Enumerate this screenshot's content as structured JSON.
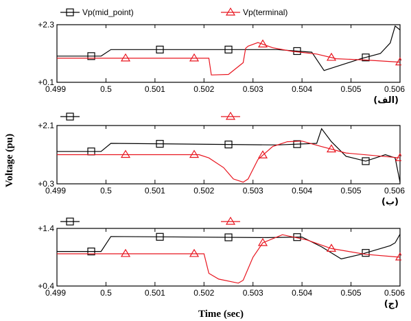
{
  "figure": {
    "ylabel": "Voltage (pu)",
    "xlabel": "Time (sec)",
    "legend": [
      {
        "name": "Vp(mid_point)",
        "color": "#000000",
        "marker": "square"
      },
      {
        "name": "Vp(terminal)",
        "color": "#e8141e",
        "marker": "triangle"
      }
    ]
  },
  "chart_data": [
    {
      "type": "line",
      "panel_label": "(الف)",
      "xlim": [
        0.499,
        0.506
      ],
      "ylim": [
        0.1,
        2.3
      ],
      "y_tick_labels": [
        "+2.3",
        "+0.1"
      ],
      "x_ticks": [
        0.499,
        0.5,
        0.501,
        0.502,
        0.503,
        0.504,
        0.505,
        0.506
      ],
      "x_tick_labels": [
        "0.499",
        "0.5",
        "0.501",
        "0.502",
        "0.503",
        "0.504",
        "0.505",
        "0.506"
      ],
      "grid": false,
      "series": [
        {
          "name": "Vp(mid_point)",
          "color": "#000000",
          "marker": "square",
          "points": [
            [
              0.499,
              1.1
            ],
            [
              0.4999,
              1.1
            ],
            [
              0.5001,
              1.35
            ],
            [
              0.5035,
              1.35
            ],
            [
              0.5042,
              1.25
            ],
            [
              0.50445,
              0.55
            ],
            [
              0.5052,
              1.0
            ],
            [
              0.5056,
              1.2
            ],
            [
              0.5058,
              1.6
            ],
            [
              0.5059,
              2.25
            ],
            [
              0.506,
              2.1
            ]
          ],
          "marker_x": [
            0.4997,
            0.5011,
            0.5025,
            0.5039,
            0.5053
          ]
        },
        {
          "name": "Vp(terminal)",
          "color": "#e8141e",
          "marker": "triangle",
          "points": [
            [
              0.499,
              1.02
            ],
            [
              0.5021,
              1.02
            ],
            [
              0.50215,
              0.38
            ],
            [
              0.5025,
              0.4
            ],
            [
              0.5028,
              0.85
            ],
            [
              0.50285,
              1.4
            ],
            [
              0.5029,
              1.48
            ],
            [
              0.5031,
              1.62
            ],
            [
              0.5034,
              1.42
            ],
            [
              0.5038,
              1.28
            ],
            [
              0.5043,
              1.18
            ],
            [
              0.5047,
              1.0
            ],
            [
              0.5053,
              0.95
            ],
            [
              0.506,
              0.87
            ]
          ],
          "marker_x": [
            0.5004,
            0.5018,
            0.5032,
            0.5046,
            0.506
          ]
        }
      ]
    },
    {
      "type": "line",
      "panel_label": "(ب)",
      "xlim": [
        0.499,
        0.506
      ],
      "ylim": [
        0.3,
        2.1
      ],
      "y_tick_labels": [
        "+2.1",
        "+0.3"
      ],
      "x_ticks": [
        0.499,
        0.5,
        0.501,
        0.502,
        0.503,
        0.504,
        0.505,
        0.506
      ],
      "x_tick_labels": [
        "0.499",
        "0.5",
        "0.501",
        "0.502",
        "0.503",
        "0.504",
        "0.505",
        "0.506"
      ],
      "grid": false,
      "series": [
        {
          "name": "Vp(mid_point)",
          "color": "#000000",
          "marker": "square",
          "points": [
            [
              0.499,
              1.3
            ],
            [
              0.4999,
              1.3
            ],
            [
              0.5001,
              1.55
            ],
            [
              0.5035,
              1.5
            ],
            [
              0.5043,
              1.55
            ],
            [
              0.5044,
              2.0
            ],
            [
              0.5046,
              1.6
            ],
            [
              0.5049,
              1.15
            ],
            [
              0.5053,
              1.0
            ],
            [
              0.5057,
              1.2
            ],
            [
              0.5059,
              1.1
            ],
            [
              0.506,
              0.35
            ]
          ],
          "marker_x": [
            0.4997,
            0.5011,
            0.5025,
            0.5039,
            0.5053
          ]
        },
        {
          "name": "Vp(terminal)",
          "color": "#e8141e",
          "marker": "triangle",
          "points": [
            [
              0.499,
              1.2
            ],
            [
              0.5019,
              1.2
            ],
            [
              0.5021,
              1.1
            ],
            [
              0.5024,
              0.8
            ],
            [
              0.5026,
              0.45
            ],
            [
              0.5028,
              0.35
            ],
            [
              0.5029,
              0.45
            ],
            [
              0.5031,
              1.05
            ],
            [
              0.5034,
              1.45
            ],
            [
              0.5037,
              1.6
            ],
            [
              0.504,
              1.62
            ],
            [
              0.5044,
              1.45
            ],
            [
              0.5049,
              1.25
            ],
            [
              0.506,
              1.1
            ]
          ],
          "marker_x": [
            0.5004,
            0.5018,
            0.5032,
            0.5046,
            0.506
          ]
        }
      ]
    },
    {
      "type": "line",
      "panel_label": "(ج)",
      "xlim": [
        0.499,
        0.506
      ],
      "ylim": [
        0.4,
        1.4
      ],
      "y_tick_labels": [
        "+1.4",
        "+0.4"
      ],
      "x_ticks": [
        0.499,
        0.5,
        0.501,
        0.502,
        0.503,
        0.504,
        0.505,
        0.506
      ],
      "x_tick_labels": [
        "0.499",
        "0.5",
        "0.501",
        "0.502",
        "0.503",
        "0.504",
        "0.505",
        "0.506"
      ],
      "grid": false,
      "series": [
        {
          "name": "Vp(mid_point)",
          "color": "#000000",
          "marker": "square",
          "points": [
            [
              0.499,
              1.0
            ],
            [
              0.4999,
              1.0
            ],
            [
              0.5001,
              1.26
            ],
            [
              0.5033,
              1.24
            ],
            [
              0.504,
              1.25
            ],
            [
              0.5044,
              1.08
            ],
            [
              0.5048,
              0.87
            ],
            [
              0.5052,
              0.95
            ],
            [
              0.5056,
              1.05
            ],
            [
              0.5058,
              1.1
            ],
            [
              0.5059,
              1.15
            ],
            [
              0.506,
              1.3
            ]
          ],
          "marker_x": [
            0.4997,
            0.5011,
            0.5025,
            0.5039,
            0.5053
          ]
        },
        {
          "name": "Vp(terminal)",
          "color": "#e8141e",
          "marker": "triangle",
          "points": [
            [
              0.499,
              0.96
            ],
            [
              0.502,
              0.96
            ],
            [
              0.5021,
              0.62
            ],
            [
              0.5023,
              0.52
            ],
            [
              0.5027,
              0.45
            ],
            [
              0.5028,
              0.5
            ],
            [
              0.503,
              0.9
            ],
            [
              0.5032,
              1.15
            ],
            [
              0.5036,
              1.29
            ],
            [
              0.5041,
              1.2
            ],
            [
              0.5046,
              1.05
            ],
            [
              0.5053,
              0.95
            ],
            [
              0.506,
              0.9
            ]
          ],
          "marker_x": [
            0.5004,
            0.5018,
            0.5032,
            0.5046,
            0.506
          ]
        }
      ]
    }
  ]
}
